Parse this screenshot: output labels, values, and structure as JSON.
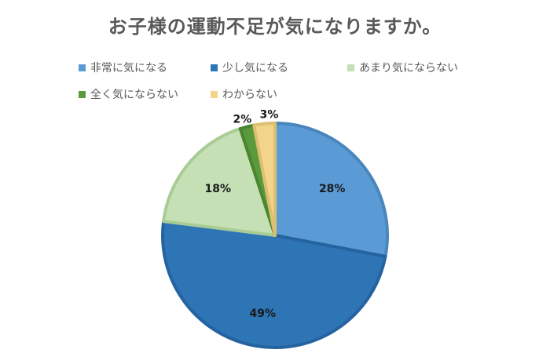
{
  "chart_data": {
    "type": "pie",
    "title": "お子様の運動不足が気になりますか。",
    "categories": [
      "非常に気になる",
      "少し気になる",
      "あまり気にならない",
      "全く気にならない",
      "わからない"
    ],
    "values": [
      28,
      49,
      18,
      2,
      3
    ],
    "labels": [
      "28%",
      "49%",
      "18%",
      "2%",
      "3%"
    ],
    "colors": [
      "#5b9bd5",
      "#2e75b6",
      "#c5e0b4",
      "#5a9a3c",
      "#f2d58a"
    ],
    "stroke_colors": [
      "#4a86bd",
      "#2563a0",
      "#a9cc96",
      "#4a8530",
      "#dcc070"
    ],
    "legend_position": "top"
  }
}
